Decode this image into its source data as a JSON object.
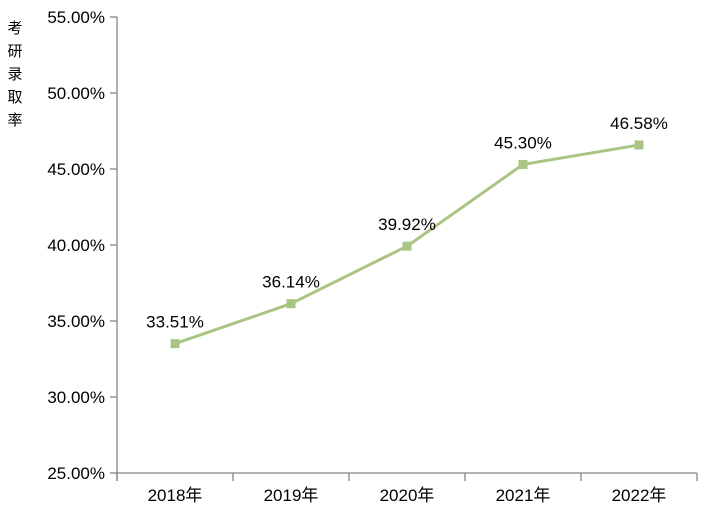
{
  "chart_data": {
    "type": "line",
    "title": "",
    "xlabel": "",
    "ylabel": "考研录取率",
    "categories": [
      "2018年",
      "2019年",
      "2020年",
      "2021年",
      "2022年"
    ],
    "series": [
      {
        "name": "考研录取率",
        "values": [
          33.51,
          36.14,
          39.92,
          45.3,
          46.58
        ]
      }
    ],
    "data_labels": [
      "33.51%",
      "36.14%",
      "39.92%",
      "45.30%",
      "46.58%"
    ],
    "ylim": [
      25,
      55
    ],
    "ytick_step": 5,
    "ytick_labels": [
      "25.00%",
      "30.00%",
      "35.00%",
      "40.00%",
      "45.00%",
      "50.00%",
      "55.00%"
    ],
    "grid": false,
    "legend": "none",
    "marker_shape": "square",
    "colors": {
      "line": "#A9C583",
      "marker": "#A9C583",
      "axis": "#848484",
      "text": "#000000",
      "background": "#FFFFFF"
    }
  }
}
